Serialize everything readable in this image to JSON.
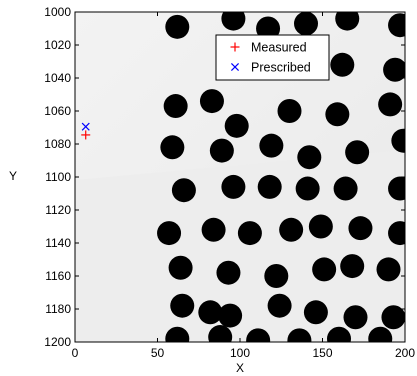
{
  "chart_data": {
    "type": "scatter",
    "xlabel": "X",
    "ylabel": "Y",
    "xlim": [
      0,
      200
    ],
    "ylim": [
      1000,
      1200
    ],
    "y_reversed": true,
    "grid": false,
    "legend_position": "top-right",
    "x_ticks": [
      0,
      50,
      100,
      150,
      200
    ],
    "y_ticks": [
      1000,
      1020,
      1040,
      1060,
      1080,
      1100,
      1120,
      1140,
      1160,
      1180,
      1200
    ],
    "colors": {
      "measured": "#ff0000",
      "prescribed": "#0000ff",
      "dots": "#000000"
    },
    "series": [
      {
        "name": "Measured",
        "marker": "+",
        "color": "#ff0000",
        "points": [
          [
            6.5,
            1074.5
          ]
        ]
      },
      {
        "name": "Prescribed",
        "marker": "x",
        "color": "#0000ff",
        "points": [
          [
            6.5,
            1069.5
          ]
        ]
      }
    ],
    "background_image": {
      "description_free": true,
      "dots": [
        [
          62,
          1009
        ],
        [
          96,
          1004
        ],
        [
          117,
          1010
        ],
        [
          140,
          1007
        ],
        [
          165,
          1004
        ],
        [
          197,
          1008
        ],
        [
          162,
          1032
        ],
        [
          194,
          1035
        ],
        [
          61,
          1057
        ],
        [
          83,
          1054
        ],
        [
          98,
          1069
        ],
        [
          130,
          1060
        ],
        [
          159,
          1062
        ],
        [
          191,
          1056
        ],
        [
          59,
          1082
        ],
        [
          89,
          1084
        ],
        [
          119,
          1081
        ],
        [
          142,
          1088
        ],
        [
          171,
          1085
        ],
        [
          199,
          1078
        ],
        [
          66,
          1108
        ],
        [
          96,
          1106
        ],
        [
          118,
          1106
        ],
        [
          141,
          1107
        ],
        [
          164,
          1107
        ],
        [
          197,
          1107
        ],
        [
          57,
          1134
        ],
        [
          84,
          1132
        ],
        [
          106,
          1134
        ],
        [
          131,
          1132
        ],
        [
          149,
          1130
        ],
        [
          173,
          1131
        ],
        [
          197,
          1134
        ],
        [
          64,
          1155
        ],
        [
          93,
          1158
        ],
        [
          122,
          1160
        ],
        [
          151,
          1156
        ],
        [
          168,
          1154
        ],
        [
          190,
          1156
        ],
        [
          65,
          1178
        ],
        [
          82,
          1182
        ],
        [
          94,
          1184
        ],
        [
          124,
          1178
        ],
        [
          146,
          1182
        ],
        [
          170,
          1185
        ],
        [
          193,
          1185
        ],
        [
          62,
          1198
        ],
        [
          88,
          1197
        ],
        [
          111,
          1199
        ],
        [
          136,
          1199
        ],
        [
          160,
          1198
        ],
        [
          185,
          1198
        ]
      ]
    }
  },
  "legend": {
    "entries": [
      {
        "label": "Measured",
        "symbol": "+",
        "color": "#ff0000"
      },
      {
        "label": "Prescribed",
        "symbol": "x",
        "color": "#0000ff"
      }
    ]
  }
}
